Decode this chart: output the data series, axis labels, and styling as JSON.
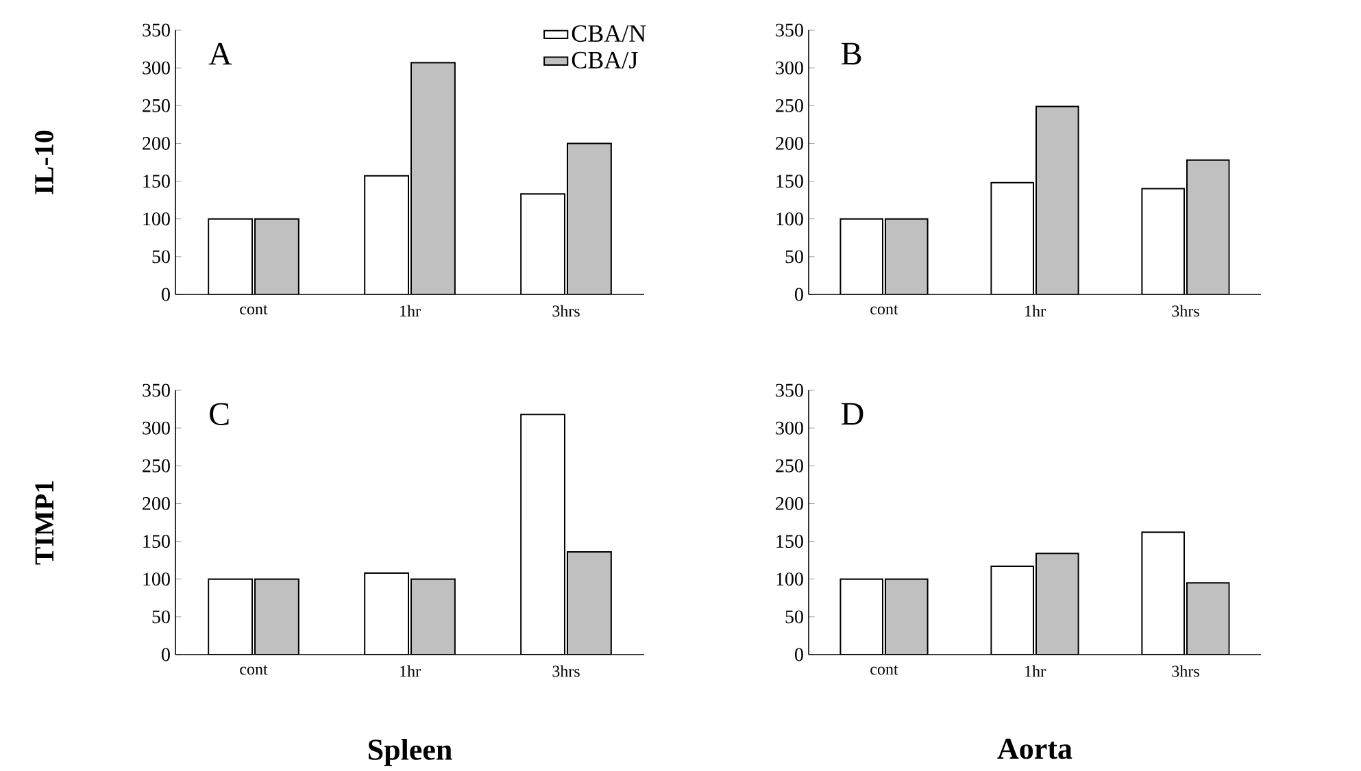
{
  "chart_data": [
    {
      "type": "bar",
      "categories": [
        "cont",
        "1hr",
        "3hrs"
      ],
      "ylabel": "IL-10",
      "annotations": [
        "A"
      ],
      "ylim": [
        0,
        350
      ],
      "yticks": [
        0,
        50,
        100,
        150,
        200,
        250,
        300,
        350
      ],
      "legend": "top right",
      "series": [
        {
          "name": "CBA/N",
          "color": "#ffffff",
          "values": [
            100,
            157,
            133
          ]
        },
        {
          "name": "CBA/J",
          "color": "#c0c0c0",
          "values": [
            100,
            307,
            200
          ]
        }
      ]
    },
    {
      "type": "bar",
      "categories": [
        "cont",
        "1hr",
        "3hrs"
      ],
      "annotations": [
        "B"
      ],
      "ylim": [
        0,
        350
      ],
      "yticks": [
        0,
        50,
        100,
        150,
        200,
        250,
        300,
        350
      ],
      "series": [
        {
          "color": "#ffffff",
          "values": [
            100,
            148,
            140
          ]
        },
        {
          "color": "#c0c0c0",
          "values": [
            100,
            249,
            178
          ]
        }
      ]
    },
    {
      "type": "bar",
      "categories": [
        "cont",
        "1hr",
        "3hrs"
      ],
      "ylabel": "TIMP1",
      "xlabel": "Spleen",
      "annotations": [
        "C"
      ],
      "ylim": [
        0,
        350
      ],
      "yticks": [
        0,
        50,
        100,
        150,
        200,
        250,
        300,
        350
      ],
      "series": [
        {
          "color": "#ffffff",
          "values": [
            100,
            108,
            318
          ]
        },
        {
          "color": "#c0c0c0",
          "values": [
            100,
            100,
            136
          ]
        }
      ]
    },
    {
      "type": "bar",
      "categories": [
        "cont",
        "1hr",
        "3hrs"
      ],
      "xlabel": "Aorta",
      "annotations": [
        "D"
      ],
      "ylim": [
        0,
        350
      ],
      "yticks": [
        0,
        50,
        100,
        150,
        200,
        250,
        300,
        350
      ],
      "series": [
        {
          "color": "#ffffff",
          "values": [
            100,
            117,
            162
          ]
        },
        {
          "color": "#c0c0c0",
          "values": [
            100,
            134,
            95
          ]
        }
      ]
    }
  ]
}
